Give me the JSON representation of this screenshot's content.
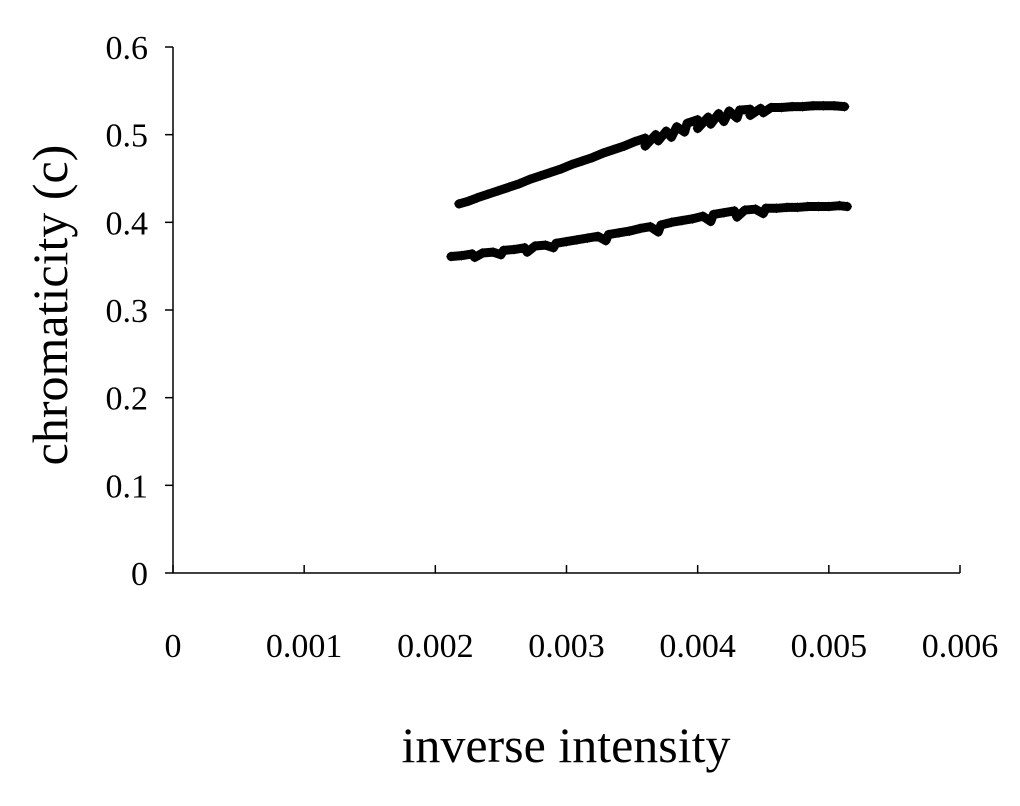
{
  "chart_data": {
    "type": "scatter",
    "title": "",
    "xlabel": "inverse intensity",
    "ylabel": "chromaticity (c)",
    "xlim": [
      0,
      0.006
    ],
    "ylim": [
      0,
      0.6
    ],
    "x_ticks": [
      "0",
      "0.001",
      "0.002",
      "0.003",
      "0.004",
      "0.005",
      "0.006"
    ],
    "y_ticks": [
      "0",
      "0.1",
      "0.2",
      "0.3",
      "0.4",
      "0.5",
      "0.6"
    ],
    "grid": false,
    "legend": "none",
    "marker_color": "#000000",
    "series": [
      {
        "points": [
          [
            0.00218,
            0.421
          ],
          [
            0.00225,
            0.424
          ],
          [
            0.00232,
            0.428
          ],
          [
            0.0024,
            0.432
          ],
          [
            0.00248,
            0.436
          ],
          [
            0.00256,
            0.44
          ],
          [
            0.00264,
            0.444
          ],
          [
            0.00272,
            0.449
          ],
          [
            0.0028,
            0.453
          ],
          [
            0.00288,
            0.457
          ],
          [
            0.00296,
            0.461
          ],
          [
            0.00304,
            0.466
          ],
          [
            0.00312,
            0.47
          ],
          [
            0.0032,
            0.474
          ],
          [
            0.00328,
            0.479
          ],
          [
            0.00336,
            0.483
          ],
          [
            0.00344,
            0.487
          ],
          [
            0.00352,
            0.492
          ],
          [
            0.0036,
            0.496
          ],
          [
            0.00368,
            0.5
          ],
          [
            0.00376,
            0.504
          ],
          [
            0.00384,
            0.509
          ],
          [
            0.00392,
            0.513
          ],
          [
            0.004,
            0.517
          ],
          [
            0.00408,
            0.52
          ],
          [
            0.00416,
            0.524
          ],
          [
            0.00424,
            0.527
          ],
          [
            0.00432,
            0.528
          ],
          [
            0.0044,
            0.529
          ],
          [
            0.00448,
            0.53
          ],
          [
            0.00456,
            0.531
          ],
          [
            0.00464,
            0.531
          ],
          [
            0.00472,
            0.532
          ],
          [
            0.0048,
            0.532
          ],
          [
            0.00488,
            0.533
          ],
          [
            0.00496,
            0.533
          ],
          [
            0.00504,
            0.533
          ],
          [
            0.00512,
            0.532
          ],
          [
            0.0036,
            0.487
          ],
          [
            0.0038,
            0.497
          ],
          [
            0.004,
            0.507
          ],
          [
            0.0042,
            0.515
          ],
          [
            0.0043,
            0.519
          ],
          [
            0.0041,
            0.512
          ],
          [
            0.0039,
            0.503
          ],
          [
            0.0037,
            0.493
          ],
          [
            0.0044,
            0.522
          ],
          [
            0.0045,
            0.525
          ]
        ]
      },
      {
        "points": [
          [
            0.00212,
            0.361
          ],
          [
            0.0022,
            0.362
          ],
          [
            0.00228,
            0.364
          ],
          [
            0.00236,
            0.365
          ],
          [
            0.00244,
            0.366
          ],
          [
            0.00252,
            0.368
          ],
          [
            0.0026,
            0.369
          ],
          [
            0.00268,
            0.371
          ],
          [
            0.00276,
            0.373
          ],
          [
            0.00284,
            0.374
          ],
          [
            0.00292,
            0.376
          ],
          [
            0.003,
            0.378
          ],
          [
            0.00308,
            0.38
          ],
          [
            0.00316,
            0.382
          ],
          [
            0.00324,
            0.384
          ],
          [
            0.00332,
            0.386
          ],
          [
            0.0034,
            0.388
          ],
          [
            0.00348,
            0.39
          ],
          [
            0.00356,
            0.393
          ],
          [
            0.00364,
            0.395
          ],
          [
            0.00372,
            0.397
          ],
          [
            0.0038,
            0.4
          ],
          [
            0.00388,
            0.402
          ],
          [
            0.00396,
            0.404
          ],
          [
            0.00404,
            0.407
          ],
          [
            0.00412,
            0.409
          ],
          [
            0.0042,
            0.411
          ],
          [
            0.00428,
            0.413
          ],
          [
            0.00436,
            0.414
          ],
          [
            0.00444,
            0.415
          ],
          [
            0.00452,
            0.416
          ],
          [
            0.0046,
            0.416
          ],
          [
            0.00468,
            0.417
          ],
          [
            0.00476,
            0.417
          ],
          [
            0.00484,
            0.418
          ],
          [
            0.00492,
            0.418
          ],
          [
            0.005,
            0.418
          ],
          [
            0.00508,
            0.419
          ],
          [
            0.00514,
            0.418
          ],
          [
            0.0023,
            0.36
          ],
          [
            0.0025,
            0.363
          ],
          [
            0.0027,
            0.366
          ],
          [
            0.0029,
            0.371
          ],
          [
            0.0033,
            0.379
          ],
          [
            0.0037,
            0.389
          ],
          [
            0.0041,
            0.401
          ],
          [
            0.0043,
            0.406
          ],
          [
            0.0045,
            0.41
          ]
        ]
      }
    ]
  }
}
